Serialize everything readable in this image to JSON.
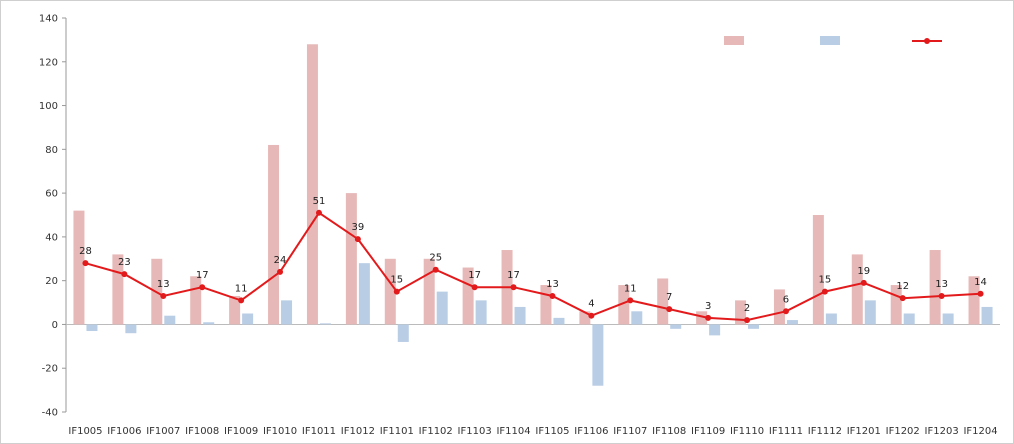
{
  "chart_data": {
    "type": "bar",
    "title": "",
    "xlabel": "",
    "ylabel": "",
    "ylim": [
      -40,
      140
    ],
    "yticks": [
      -40,
      -20,
      0,
      20,
      40,
      60,
      80,
      100,
      120,
      140
    ],
    "grid": false,
    "legend_position": "top-right",
    "categories": [
      "IF1005",
      "IF1006",
      "IF1007",
      "IF1008",
      "IF1009",
      "IF1010",
      "IF1011",
      "IF1012",
      "IF1101",
      "IF1102",
      "IF1103",
      "IF1104",
      "IF1105",
      "IF1106",
      "IF1107",
      "IF1108",
      "IF1109",
      "IF1110",
      "IF1111",
      "IF1112",
      "IF1201",
      "IF1202",
      "IF1203",
      "IF1204"
    ],
    "series": [
      {
        "name": "",
        "type": "bar",
        "color": "#e6b9b8",
        "values": [
          52,
          32,
          30,
          22,
          13,
          82,
          128,
          60,
          30,
          30,
          26,
          34,
          18,
          6,
          18,
          21,
          6,
          11,
          16,
          50,
          32,
          18,
          34,
          22
        ]
      },
      {
        "name": "",
        "type": "bar",
        "color": "#b9cde5",
        "values": [
          -3,
          -4,
          4,
          1,
          5,
          11,
          0.5,
          28,
          -8,
          15,
          11,
          8,
          3,
          -28,
          6,
          -2,
          -5,
          -2,
          2,
          5,
          11,
          5,
          5,
          8
        ]
      },
      {
        "name": "",
        "type": "line",
        "color": "#e31a1c",
        "values": [
          28,
          23,
          13,
          17,
          11,
          24,
          51,
          39,
          15,
          25,
          17,
          17,
          13,
          4,
          11,
          7,
          3,
          2,
          6,
          15,
          19,
          12,
          13,
          14
        ]
      }
    ]
  }
}
